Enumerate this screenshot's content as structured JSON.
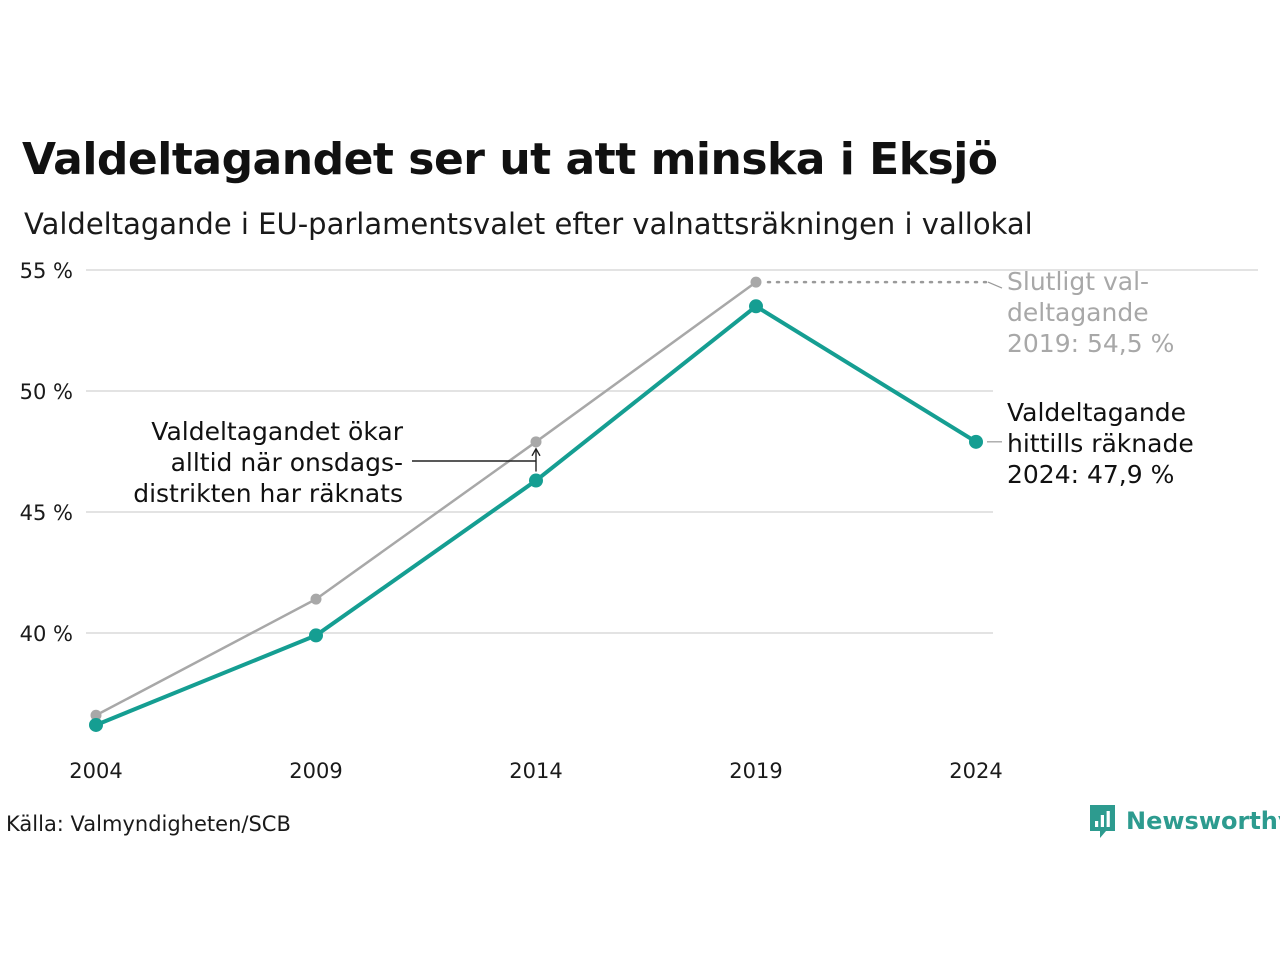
{
  "title": "Valdeltagandet ser ut att minska i Eksjö",
  "subtitle": "Valdeltagande i EU-parlamentsvalet efter valnattsräkningen i vallokal",
  "source": "Källa: Valmyndigheten/SCB",
  "logo": {
    "text": "Newsworthy",
    "icon": "newsworthy-chart-bubble-icon",
    "color": "#2d9b8f"
  },
  "colors": {
    "valnatt": "#159e92",
    "slutligt": "#a8a8a8",
    "grid": "#e3e3e3",
    "annotation": "#222222"
  },
  "annotations": {
    "slutligt": [
      "Slutligt val-",
      "deltagande",
      "2019: 54,5 %"
    ],
    "valnatt": [
      "Valdeltagande",
      "hittills räknade",
      "2024: 47,9 %"
    ],
    "onsdags": [
      "Valdeltagandet ökar",
      "alltid när onsdags-",
      "distrikten har räknats"
    ]
  },
  "chart_data": {
    "type": "line",
    "title": "Valdeltagandet ser ut att minska i Eksjö",
    "subtitle": "Valdeltagande i EU-parlamentsvalet efter valnattsräkningen i vallokal",
    "x": [
      2004,
      2009,
      2014,
      2019,
      2024
    ],
    "x_tick_labels": [
      "2004",
      "2009",
      "2014",
      "2019",
      "2024"
    ],
    "y_ticks": [
      40,
      45,
      50,
      55
    ],
    "y_tick_labels": [
      "40 %",
      "45 %",
      "50 %",
      "55 %"
    ],
    "ylim": [
      35,
      55
    ],
    "grid": true,
    "legend": "none (direct labels)",
    "series": [
      {
        "key": "slutligt",
        "values": [
          36.6,
          41.4,
          47.9,
          54.5,
          null
        ]
      },
      {
        "key": "valnatt",
        "values": [
          36.2,
          39.9,
          46.3,
          53.5,
          47.9
        ]
      }
    ]
  }
}
